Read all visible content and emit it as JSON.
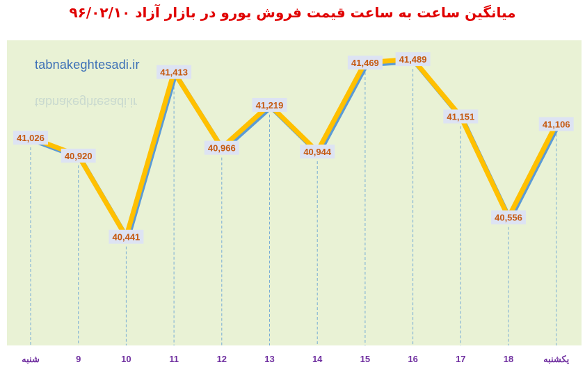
{
  "chart_data": {
    "type": "line",
    "title": "میانگین ساعت به ساعت قیمت فروش یورو در بازار آزاد ۹۶/۰۲/۱۰",
    "watermark": "tabnakeghtesadi.ir",
    "categories": [
      "شنبه",
      "9",
      "10",
      "11",
      "12",
      "13",
      "14",
      "15",
      "16",
      "17",
      "18",
      "یکشنبه"
    ],
    "values": [
      41026,
      40920,
      40441,
      41413,
      40966,
      41219,
      40944,
      41469,
      41489,
      41151,
      40556,
      41106
    ],
    "data_labels": [
      "41,026",
      "40,920",
      "40,441",
      "41,413",
      "40,966",
      "41,219",
      "40,944",
      "41,469",
      "41,489",
      "41,151",
      "40,556",
      "41,106"
    ],
    "ylim": [
      39800,
      41600
    ],
    "grid": "vertical dashed",
    "colors": {
      "line": "#ffc000",
      "line_shadow": "#5b9bd5",
      "plot_background": "#e9f2d5",
      "title": "#e00000",
      "tick_labels": "#7030a0",
      "data_labels": "#c55a11",
      "data_label_background": "#dde3f3"
    }
  }
}
